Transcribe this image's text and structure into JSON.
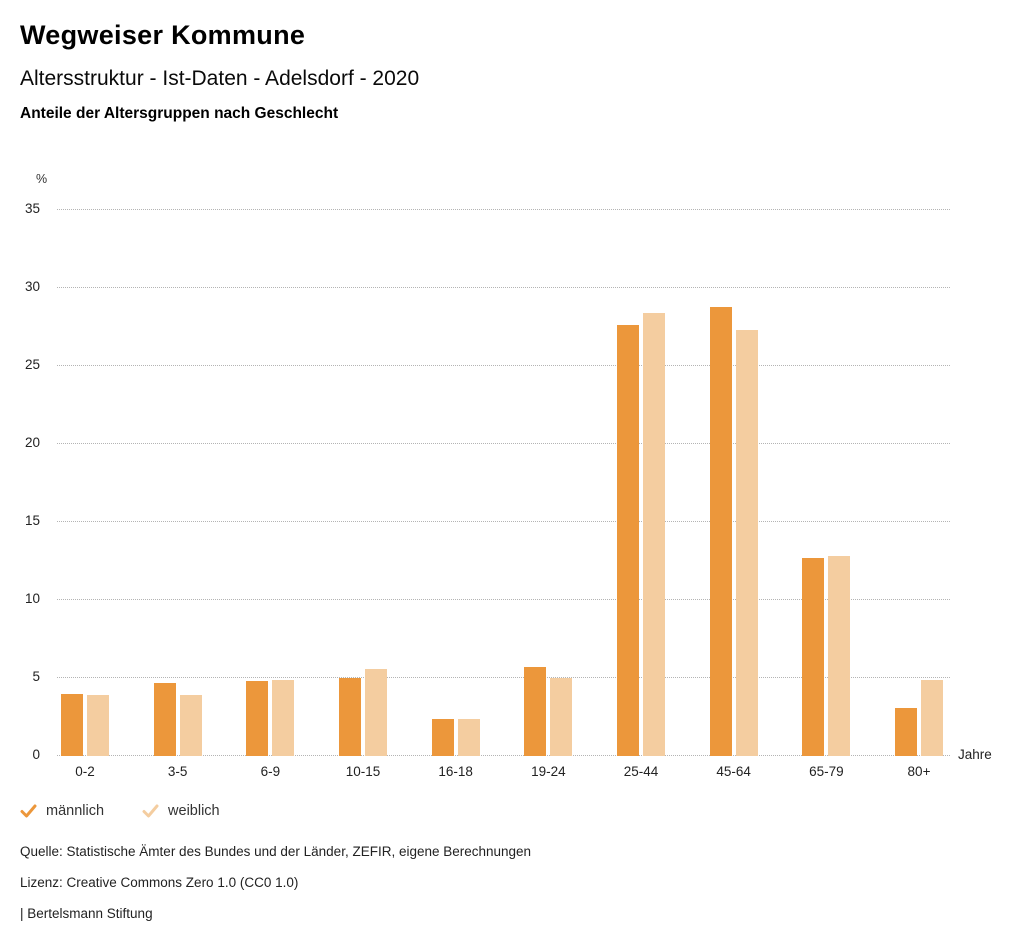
{
  "header": {
    "title": "Wegweiser Kommune",
    "subtitle": "Altersstruktur - Ist-Daten - Adelsdorf - 2020",
    "chart_heading": "Anteile der Altersgruppen nach Geschlecht"
  },
  "chart_data": {
    "type": "bar",
    "title": "Anteile der Altersgruppen nach Geschlecht",
    "categories": [
      "0-2",
      "3-5",
      "6-9",
      "10-15",
      "16-18",
      "19-24",
      "25-44",
      "45-64",
      "65-79",
      "80+"
    ],
    "series": [
      {
        "name": "männlich",
        "color": "#EC973B",
        "values": [
          4.0,
          4.7,
          4.8,
          5.0,
          2.4,
          5.7,
          27.6,
          28.8,
          12.7,
          3.1
        ]
      },
      {
        "name": "weiblich",
        "color": "#F4CDA0",
        "values": [
          3.9,
          3.9,
          4.9,
          5.6,
          2.4,
          5.0,
          28.4,
          27.3,
          12.8,
          4.9
        ]
      }
    ],
    "xlabel": "Jahre",
    "ylabel": "%",
    "ylim": [
      0,
      35
    ],
    "ytick_step": 5,
    "grid": true,
    "legend_position": "bottom"
  },
  "footer": {
    "source": "Quelle: Statistische Ämter des Bundes und der Länder, ZEFIR, eigene Berechnungen",
    "license": "Lizenz: Creative Commons Zero 1.0 (CC0 1.0)",
    "attribution": "| Bertelsmann Stiftung"
  }
}
